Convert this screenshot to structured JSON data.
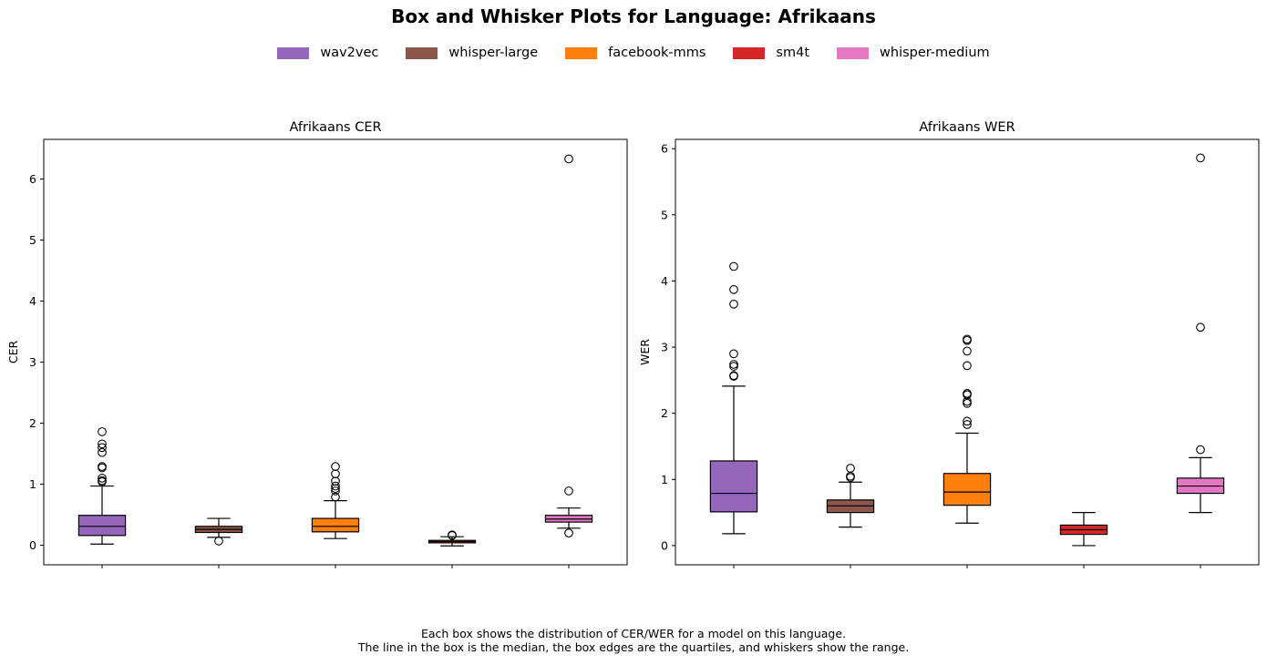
{
  "title": "Box and Whisker Plots for Language: Afrikaans",
  "legend": [
    {
      "label": "wav2vec",
      "color": "#9467bd"
    },
    {
      "label": "whisper-large",
      "color": "#8c564b"
    },
    {
      "label": "facebook-mms",
      "color": "#ff7f0e"
    },
    {
      "label": "sm4t",
      "color": "#d62728"
    },
    {
      "label": "whisper-medium",
      "color": "#e377c2"
    }
  ],
  "footnote": {
    "line1": "Each box shows the distribution of CER/WER for a model on this language.",
    "line2": "The line in the box is the median, the box edges are the quartiles, and whiskers show the range."
  },
  "chart_data": [
    {
      "type": "box",
      "title": "Afrikaans CER",
      "xlabel": "",
      "ylabel": "CER",
      "ylim": [
        -0.32,
        6.65
      ],
      "yticks": [
        0,
        1,
        2,
        3,
        4,
        5,
        6
      ],
      "grid": false,
      "series": [
        {
          "name": "wav2vec",
          "color": "#9467bd",
          "whislo": 0.02,
          "q1": 0.16,
          "med": 0.31,
          "q3": 0.49,
          "whishi": 0.97,
          "fliers": [
            1.04,
            1.06,
            1.1,
            1.27,
            1.29,
            1.52,
            1.6,
            1.66,
            1.86
          ]
        },
        {
          "name": "whisper-large",
          "color": "#8c564b",
          "whislo": 0.13,
          "q1": 0.21,
          "med": 0.26,
          "q3": 0.31,
          "whishi": 0.44,
          "fliers": [
            0.07
          ]
        },
        {
          "name": "facebook-mms",
          "color": "#ff7f0e",
          "whislo": 0.11,
          "q1": 0.22,
          "med": 0.31,
          "q3": 0.44,
          "whishi": 0.73,
          "fliers": [
            0.79,
            0.89,
            0.93,
            0.97,
            1.05,
            1.17,
            1.29
          ]
        },
        {
          "name": "sm4t",
          "color": "#d62728",
          "whislo": -0.01,
          "q1": 0.04,
          "med": 0.06,
          "q3": 0.08,
          "whishi": 0.14,
          "fliers": [
            0.16,
            0.17
          ]
        },
        {
          "name": "whisper-medium",
          "color": "#e377c2",
          "whislo": 0.28,
          "q1": 0.38,
          "med": 0.43,
          "q3": 0.49,
          "whishi": 0.61,
          "fliers": [
            0.2,
            0.89,
            6.33
          ]
        }
      ]
    },
    {
      "type": "box",
      "title": "Afrikaans WER",
      "xlabel": "",
      "ylabel": "WER",
      "ylim": [
        -0.29,
        6.14
      ],
      "yticks": [
        0,
        1,
        2,
        3,
        4,
        5,
        6
      ],
      "grid": false,
      "series": [
        {
          "name": "wav2vec",
          "color": "#9467bd",
          "whislo": 0.18,
          "q1": 0.51,
          "med": 0.79,
          "q3": 1.28,
          "whishi": 2.41,
          "fliers": [
            2.56,
            2.57,
            2.71,
            2.74,
            2.9,
            3.65,
            3.87,
            4.22
          ]
        },
        {
          "name": "whisper-large",
          "color": "#8c564b",
          "whislo": 0.28,
          "q1": 0.5,
          "med": 0.6,
          "q3": 0.69,
          "whishi": 0.96,
          "fliers": [
            1.03,
            1.05,
            1.17
          ]
        },
        {
          "name": "facebook-mms",
          "color": "#ff7f0e",
          "whislo": 0.34,
          "q1": 0.61,
          "med": 0.81,
          "q3": 1.09,
          "whishi": 1.7,
          "fliers": [
            1.83,
            1.88,
            2.15,
            2.18,
            2.28,
            2.3,
            2.72,
            2.94,
            3.1,
            3.12
          ]
        },
        {
          "name": "sm4t",
          "color": "#d62728",
          "whislo": 0.0,
          "q1": 0.17,
          "med": 0.24,
          "q3": 0.31,
          "whishi": 0.5,
          "fliers": []
        },
        {
          "name": "whisper-medium",
          "color": "#e377c2",
          "whislo": 0.5,
          "q1": 0.79,
          "med": 0.9,
          "q3": 1.02,
          "whishi": 1.33,
          "fliers": [
            1.45,
            3.3,
            5.86
          ]
        }
      ]
    }
  ]
}
